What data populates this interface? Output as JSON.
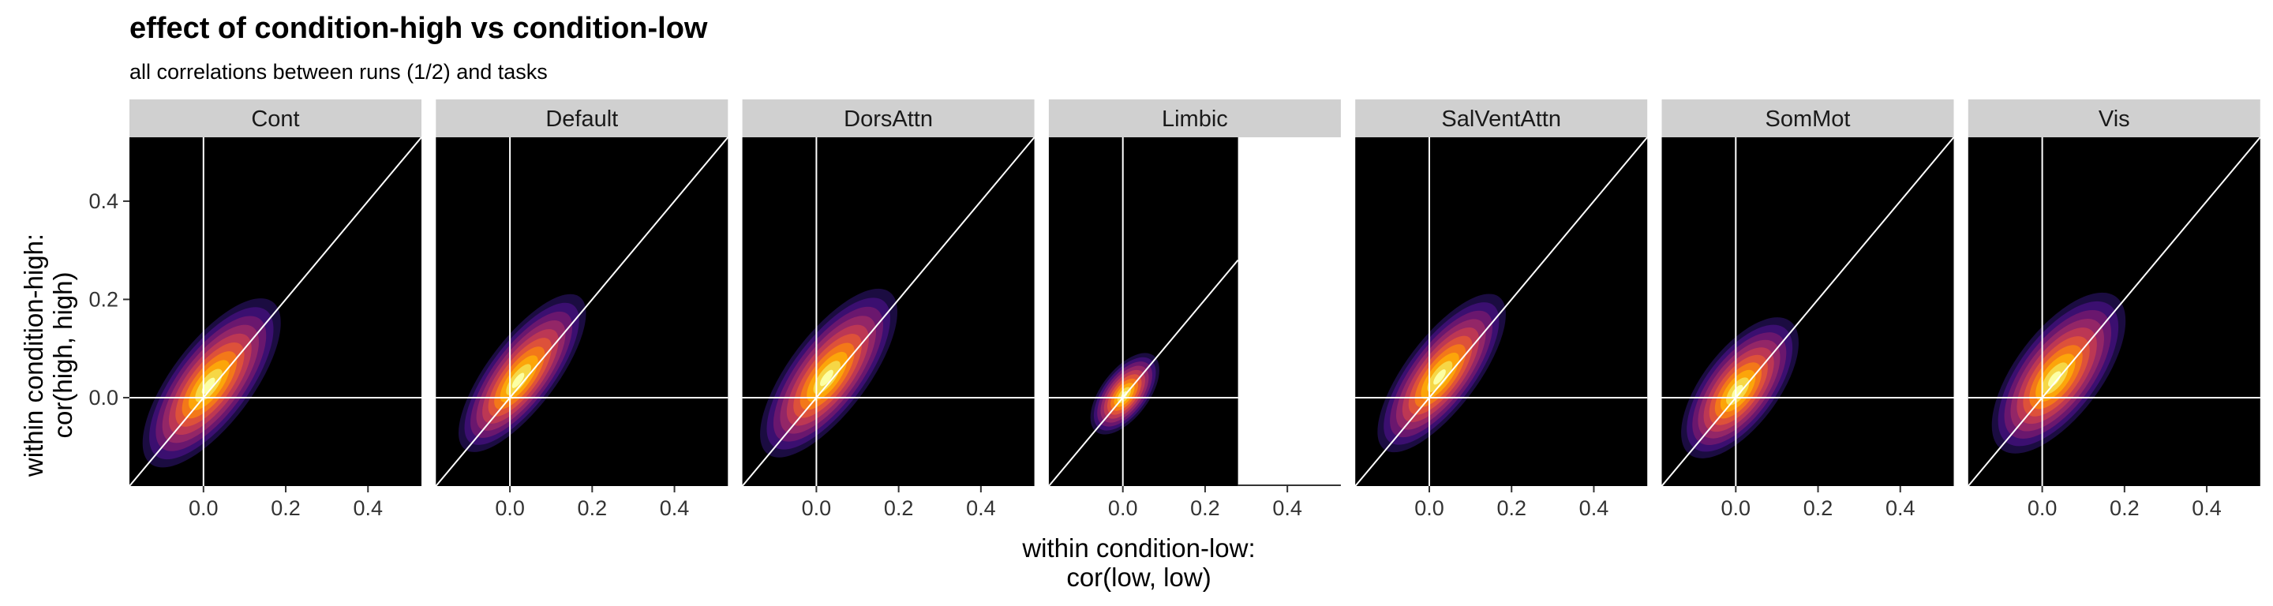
{
  "chart_data": {
    "type": "density2d",
    "title": "effect of condition-high vs condition-low",
    "subtitle": "all correlations between runs (1/2) and tasks",
    "xlabel": [
      "within condition-low:",
      "cor(low, low)"
    ],
    "ylabel": [
      "within condition-high:",
      "cor(high, high)"
    ],
    "xlim": [
      -0.18,
      0.53
    ],
    "ylim": [
      -0.18,
      0.53
    ],
    "x_ticks": [
      0.0,
      0.2,
      0.4
    ],
    "x_tick_labels": [
      "0.0",
      "0.2",
      "0.4"
    ],
    "y_ticks": [
      0.0,
      0.2,
      0.4
    ],
    "y_tick_labels": [
      "0.0",
      "0.2",
      "0.4"
    ],
    "reference_lines": {
      "hline": 0,
      "vline": 0,
      "identity": true
    },
    "palette": [
      "#1b0c41",
      "#3b0f70",
      "#6a176e",
      "#932667",
      "#bc3754",
      "#dd513a",
      "#f37819",
      "#fca50a",
      "#f6d746",
      "#fcffa4"
    ],
    "panel_background": "#000000",
    "strip_background": "#d0d0d0",
    "line_color": "#ffffff",
    "facets": [
      {
        "label": "Cont",
        "x_extent": [
          -0.15,
          0.27
        ],
        "center": [
          0.02,
          0.03
        ],
        "sd_major": 0.085,
        "sd_minor": 0.034,
        "peak_offset": [
          -0.008,
          -0.006
        ]
      },
      {
        "label": "Default",
        "x_extent": [
          -0.15,
          0.25
        ],
        "center": [
          0.03,
          0.05
        ],
        "sd_major": 0.08,
        "sd_minor": 0.029,
        "peak_offset": [
          -0.01,
          -0.015
        ]
      },
      {
        "label": "DorsAttn",
        "x_extent": [
          -0.15,
          0.25
        ],
        "center": [
          0.03,
          0.05
        ],
        "sd_major": 0.085,
        "sd_minor": 0.033,
        "peak_offset": [
          -0.005,
          -0.01
        ]
      },
      {
        "label": "Limbic",
        "x_extent": [
          -0.1,
          0.1
        ],
        "center": [
          0.005,
          0.008
        ],
        "sd_major": 0.04,
        "sd_minor": 0.02,
        "peak_offset": [
          -0.002,
          -0.003
        ],
        "data_xmax": 0.28
      },
      {
        "label": "SalVentAttn",
        "x_extent": [
          -0.13,
          0.25
        ],
        "center": [
          0.03,
          0.05
        ],
        "sd_major": 0.08,
        "sd_minor": 0.03,
        "peak_offset": [
          -0.005,
          -0.008
        ]
      },
      {
        "label": "SomMot",
        "x_extent": [
          -0.13,
          0.2
        ],
        "center": [
          0.01,
          0.02
        ],
        "sd_major": 0.07,
        "sd_minor": 0.032,
        "peak_offset": [
          -0.006,
          -0.008
        ]
      },
      {
        "label": "Vis",
        "x_extent": [
          -0.13,
          0.27
        ],
        "center": [
          0.04,
          0.05
        ],
        "sd_major": 0.08,
        "sd_minor": 0.036,
        "peak_offset": [
          -0.01,
          -0.012
        ]
      }
    ]
  }
}
